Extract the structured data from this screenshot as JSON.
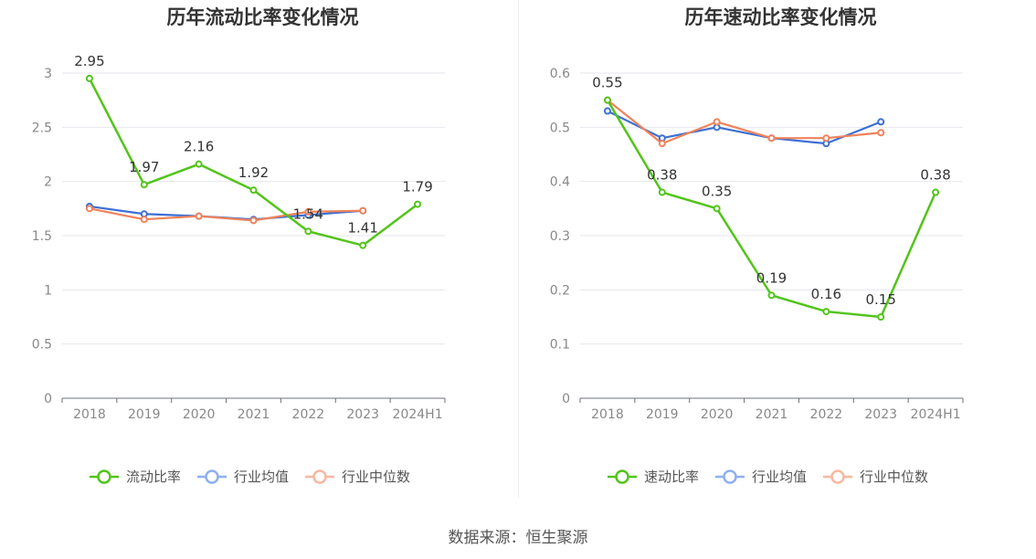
{
  "source": "数据来源：恒生聚源",
  "colors": {
    "main": "#52c41a",
    "avg": "#3b6fd4",
    "median": "#f0825a",
    "legend_avg": "#8fb0ee",
    "legend_median": "#f7b8a0"
  },
  "chart_data": [
    {
      "type": "line",
      "title": "历年流动比率变化情况",
      "categories": [
        "2018",
        "2019",
        "2020",
        "2021",
        "2022",
        "2023",
        "2024H1"
      ],
      "ylim": [
        0,
        3
      ],
      "yticks": [
        "0",
        "0.5",
        "1",
        "1.5",
        "2",
        "2.5",
        "3"
      ],
      "ytick_values": [
        0,
        0.5,
        1,
        1.5,
        2,
        2.5,
        3
      ],
      "grid": true,
      "legend_position": "bottom",
      "series": [
        {
          "name": "流动比率",
          "key": "main",
          "values": [
            2.95,
            1.97,
            2.16,
            1.92,
            1.54,
            1.41,
            1.79
          ],
          "labels": [
            "2.95",
            "1.97",
            "2.16",
            "1.92",
            "1.54",
            "1.41",
            "1.79"
          ]
        },
        {
          "name": "行业均值",
          "key": "avg",
          "values": [
            1.77,
            1.7,
            1.68,
            1.65,
            1.69,
            1.73,
            null
          ]
        },
        {
          "name": "行业中位数",
          "key": "median",
          "values": [
            1.75,
            1.65,
            1.68,
            1.64,
            1.72,
            1.73,
            null
          ]
        }
      ]
    },
    {
      "type": "line",
      "title": "历年速动比率变化情况",
      "categories": [
        "2018",
        "2019",
        "2020",
        "2021",
        "2022",
        "2023",
        "2024H1"
      ],
      "ylim": [
        0,
        0.6
      ],
      "yticks": [
        "0",
        "0.1",
        "0.2",
        "0.3",
        "0.4",
        "0.5",
        "0.6"
      ],
      "ytick_values": [
        0,
        0.1,
        0.2,
        0.3,
        0.4,
        0.5,
        0.6
      ],
      "grid": true,
      "legend_position": "bottom",
      "series": [
        {
          "name": "速动比率",
          "key": "main",
          "values": [
            0.55,
            0.38,
            0.35,
            0.19,
            0.16,
            0.15,
            0.38
          ],
          "labels": [
            "0.55",
            "0.38",
            "0.35",
            "0.19",
            "0.16",
            "0.15",
            "0.38"
          ]
        },
        {
          "name": "行业均值",
          "key": "avg",
          "values": [
            0.53,
            0.48,
            0.5,
            0.48,
            0.47,
            0.51,
            null
          ]
        },
        {
          "name": "行业中位数",
          "key": "median",
          "values": [
            0.55,
            0.47,
            0.51,
            0.48,
            0.48,
            0.49,
            null
          ]
        }
      ]
    }
  ]
}
